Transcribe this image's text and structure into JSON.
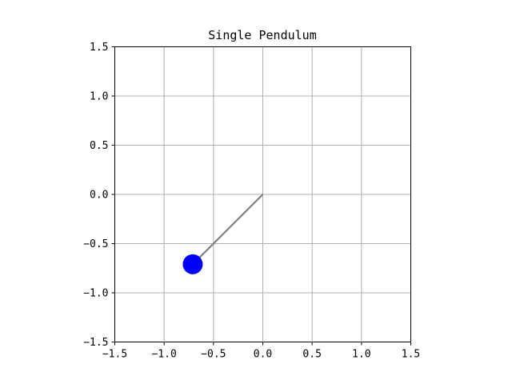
{
  "chart_data": {
    "type": "scatter",
    "title": "Single Pendulum",
    "xlabel": "",
    "ylabel": "",
    "xlim": [
      -1.5,
      1.5
    ],
    "ylim": [
      -1.5,
      1.5
    ],
    "grid": true,
    "x_ticks": [
      "−1.5",
      "−1.0",
      "−0.5",
      "0.0",
      "0.5",
      "1.0",
      "1.5"
    ],
    "y_ticks": [
      "1.5",
      "1.0",
      "0.5",
      "0.0",
      "−0.5",
      "−1.0",
      "−1.5"
    ],
    "x_tick_values": [
      -1.5,
      -1.0,
      -0.5,
      0.0,
      0.5,
      1.0,
      1.5
    ],
    "y_tick_values": [
      1.5,
      1.0,
      0.5,
      0.0,
      -0.5,
      -1.0,
      -1.5
    ],
    "rod": {
      "x": [
        0.0,
        -0.71
      ],
      "y": [
        0.0,
        -0.71
      ],
      "color": "#808080"
    },
    "bob": {
      "x": -0.71,
      "y": -0.71,
      "color": "#0000ff"
    },
    "grid_color": "#b0b0b0",
    "axes_color": "#000000"
  }
}
